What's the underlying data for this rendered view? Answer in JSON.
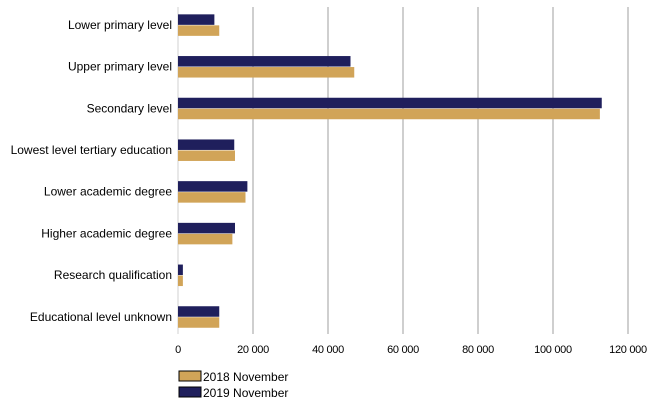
{
  "chart_data": {
    "type": "bar",
    "orientation": "horizontal",
    "categories": [
      "Lower primary level",
      "Upper primary level",
      "Secondary level",
      "Lowest level tertiary education",
      "Lower academic degree",
      "Higher academic degree",
      "Research qualification",
      "Educational level unknown"
    ],
    "series": [
      {
        "name": "2019 November",
        "color": "#1f1f5c",
        "values": [
          9700,
          46000,
          113000,
          15000,
          18500,
          15200,
          1300,
          11000
        ]
      },
      {
        "name": "2018 November",
        "color": "#d1a458",
        "values": [
          11000,
          47000,
          112500,
          15200,
          18000,
          14500,
          1300,
          11000
        ]
      }
    ],
    "legend_order": [
      "2018 November",
      "2019 November"
    ],
    "legend_position": "bottom-left",
    "xticks": [
      0,
      20000,
      40000,
      60000,
      80000,
      100000,
      120000
    ],
    "xtick_labels": [
      "0",
      "20 000",
      "40 000",
      "60 000",
      "80 000",
      "100 000",
      "120 000"
    ],
    "xlim": [
      0,
      120000
    ],
    "grid": "vertical",
    "title": "",
    "xlabel": "",
    "ylabel": ""
  }
}
